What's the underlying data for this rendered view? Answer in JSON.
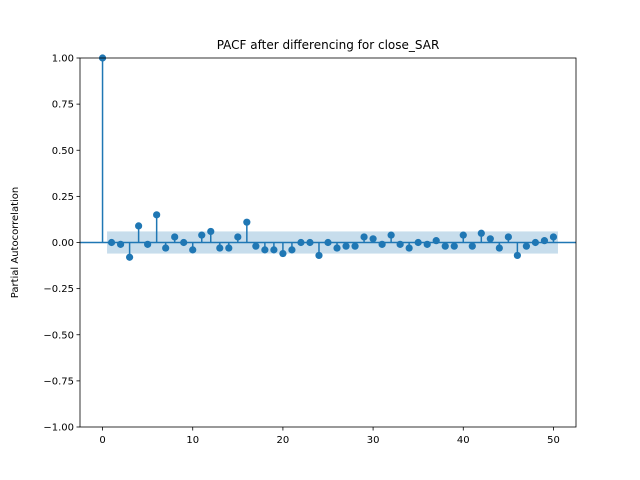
{
  "chart_data": {
    "type": "stem",
    "title": "PACF after differencing for close_SAR",
    "xlabel": "",
    "ylabel": "Partial Autocorrelation",
    "xlim": [
      -2.5,
      52.5
    ],
    "ylim": [
      -1.0,
      1.0
    ],
    "xticks": [
      0,
      10,
      20,
      30,
      40,
      50
    ],
    "xtick_labels": [
      "0",
      "10",
      "20",
      "30",
      "40",
      "50"
    ],
    "yticks": [
      1.0,
      0.75,
      0.5,
      0.25,
      0.0,
      -0.25,
      -0.5,
      -0.75,
      -1.0
    ],
    "ytick_labels": [
      "1.00",
      "0.75",
      "0.50",
      "0.25",
      "0.00",
      "−0.25",
      "−0.50",
      "−0.75",
      "−1.00"
    ],
    "confidence_band": {
      "lower": -0.06,
      "upper": 0.06,
      "from_lag": 0.5,
      "to_lag": 50.5
    },
    "colors": {
      "stem": "#1f77b4",
      "band": "#1f77b4",
      "baseline": "#1f77b4"
    },
    "lags": [
      0,
      1,
      2,
      3,
      4,
      5,
      6,
      7,
      8,
      9,
      10,
      11,
      12,
      13,
      14,
      15,
      16,
      17,
      18,
      19,
      20,
      21,
      22,
      23,
      24,
      25,
      26,
      27,
      28,
      29,
      30,
      31,
      32,
      33,
      34,
      35,
      36,
      37,
      38,
      39,
      40,
      41,
      42,
      43,
      44,
      45,
      46,
      47,
      48,
      49,
      50
    ],
    "values": [
      1.0,
      0.0,
      -0.01,
      -0.08,
      0.09,
      -0.01,
      0.15,
      -0.03,
      0.03,
      0.0,
      -0.04,
      0.04,
      0.06,
      -0.03,
      -0.03,
      0.03,
      0.11,
      -0.02,
      -0.04,
      -0.04,
      -0.06,
      -0.04,
      0.0,
      0.0,
      -0.07,
      0.0,
      -0.03,
      -0.02,
      -0.02,
      0.03,
      0.02,
      -0.01,
      0.04,
      -0.01,
      -0.03,
      0.0,
      -0.01,
      0.01,
      -0.02,
      -0.02,
      0.04,
      -0.02,
      0.05,
      0.02,
      -0.03,
      0.03,
      -0.07,
      -0.02,
      0.0,
      0.01,
      0.03
    ]
  }
}
